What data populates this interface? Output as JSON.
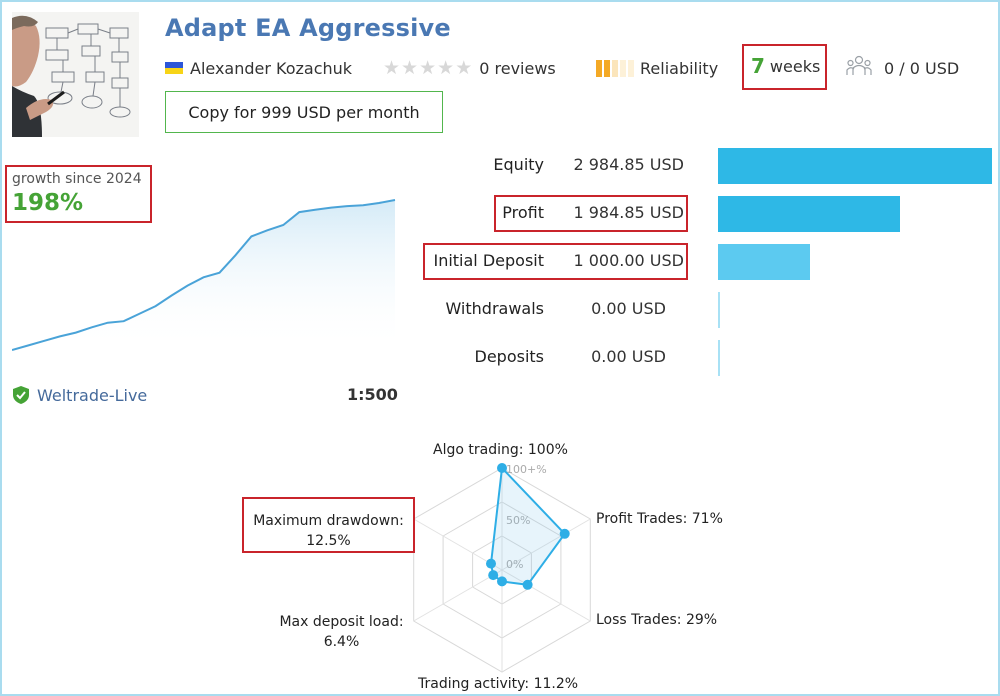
{
  "header": {
    "title": "Adapt EA Aggressive",
    "author": "Alexander Kozachuk",
    "reviews": "0 reviews",
    "reliability_label": "Reliability",
    "weeks_number": "7",
    "weeks_label": "weeks",
    "subscribers": "0 / 0 USD",
    "copy_button": "Copy for 999 USD per month",
    "rating": 0,
    "colors": {
      "title": "#4a78b3",
      "accent": "#45a336",
      "highlight": "#c9242b"
    }
  },
  "growth": {
    "label": "growth since 2024",
    "value": "198%"
  },
  "balance": [
    {
      "label": "Equity",
      "value": "2 984.85 USD"
    },
    {
      "label": "Profit",
      "value": "1 984.85 USD"
    },
    {
      "label": "Initial Deposit",
      "value": "1 000.00 USD"
    },
    {
      "label": "Withdrawals",
      "value": "0.00 USD"
    },
    {
      "label": "Deposits",
      "value": "0.00 USD"
    }
  ],
  "account": {
    "broker": "Weltrade-Live",
    "leverage": "1:500"
  },
  "radar": {
    "algo": "Algo trading: 100%",
    "profit_trades": "Profit Trades: 71%",
    "loss_trades": "Loss Trades: 29%",
    "trading_activity": "Trading activity: 11.2%",
    "deposit_load_title": "Max deposit load:",
    "deposit_load_value": "6.4%",
    "drawdown_title": "Maximum drawdown:",
    "drawdown_value": "12.5%",
    "tick_100": "100+%",
    "tick_50": "50%",
    "tick_0": "0%"
  },
  "chart_data": [
    {
      "type": "line",
      "title": "growth since 2024",
      "x": [
        0,
        1,
        2,
        3,
        4,
        5,
        6,
        7,
        8,
        9,
        10,
        11,
        12,
        13,
        14,
        15,
        16,
        17,
        18,
        19,
        20,
        21,
        22,
        23,
        24
      ],
      "values": [
        0,
        6,
        12,
        18,
        23,
        30,
        36,
        38,
        48,
        58,
        72,
        85,
        96,
        102,
        125,
        150,
        158,
        165,
        182,
        185,
        188,
        190,
        191,
        194,
        198
      ],
      "xlabel": "",
      "ylabel": "",
      "ylim": [
        0,
        198
      ]
    },
    {
      "type": "bar",
      "categories": [
        "Equity",
        "Profit",
        "Initial Deposit",
        "Withdrawals",
        "Deposits"
      ],
      "values": [
        2984.85,
        1984.85,
        1000.0,
        0.0,
        0.0
      ],
      "colors": [
        "#2eb8e6",
        "#2eb8e6",
        "#5ccaf0",
        "#a8e1f5",
        "#a8e1f5"
      ]
    },
    {
      "type": "radar",
      "categories": [
        "Algo trading",
        "Profit Trades",
        "Loss Trades",
        "Trading activity",
        "Max deposit load",
        "Maximum drawdown"
      ],
      "values": [
        100,
        71,
        29,
        11.2,
        6.4,
        12.5
      ],
      "ylim": [
        0,
        100
      ]
    }
  ]
}
